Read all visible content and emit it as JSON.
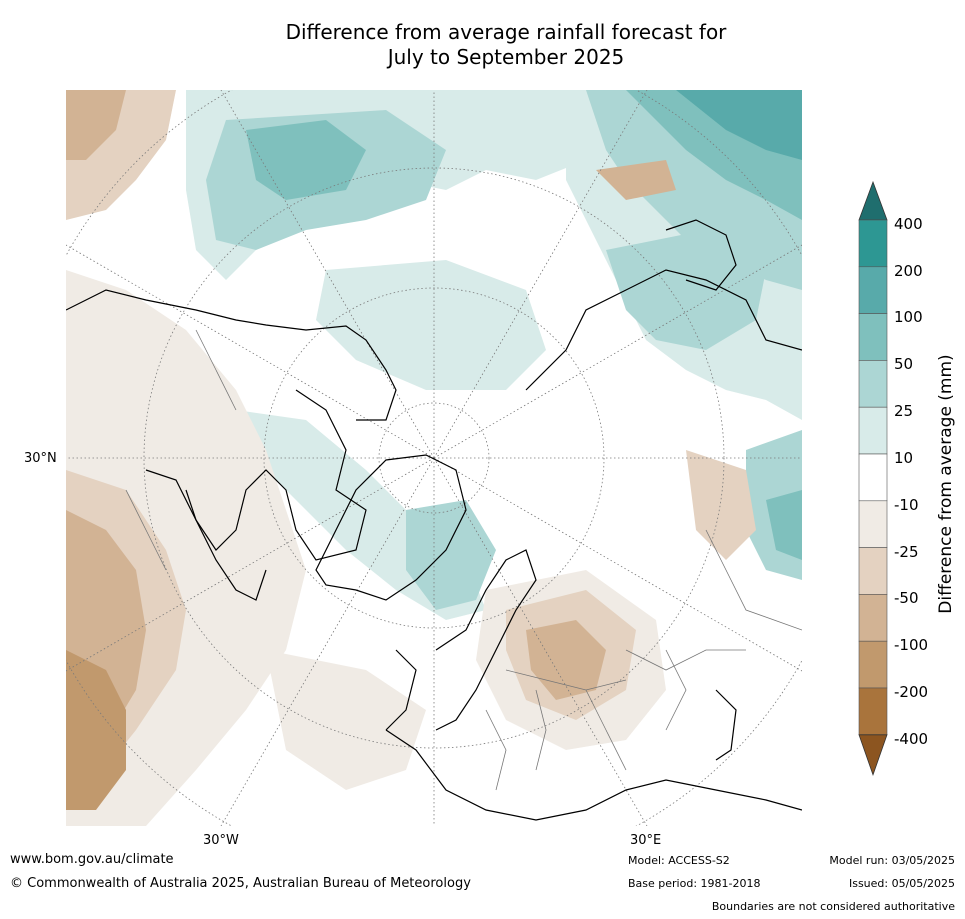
{
  "title_line1": "Difference from average rainfall forecast for",
  "title_line2": "July to September 2025",
  "map": {
    "projection": "north polar stereographic",
    "lat_label": "30°N",
    "lon_labels": [
      "30°W",
      "30°E"
    ]
  },
  "colorbar": {
    "label": "Difference from average (mm)",
    "ticks": [
      "400",
      "200",
      "100",
      "50",
      "25",
      "10",
      "-10",
      "-25",
      "-50",
      "-100",
      "-200",
      "-400"
    ],
    "colors": [
      "#1f6e6e",
      "#2d9793",
      "#58aaaa",
      "#7fc0bd",
      "#acd6d4",
      "#d8ebe9",
      "#ffffff",
      "#f0ebe5",
      "#e4d2c1",
      "#d2b394",
      "#c1996d",
      "#a9743c",
      "#8c5520"
    ],
    "extend": "both"
  },
  "footer": {
    "website": "www.bom.gov.au/climate",
    "copyright": "© Commonwealth of Australia 2025, Australian Bureau of Meteorology",
    "model": "Model: ACCESS-S2",
    "base_period": "Base period: 1981-2018",
    "model_run": "Model run: 03/05/2025",
    "issued": "Issued: 05/05/2025",
    "disclaimer": "Boundaries are not considered authoritative"
  }
}
